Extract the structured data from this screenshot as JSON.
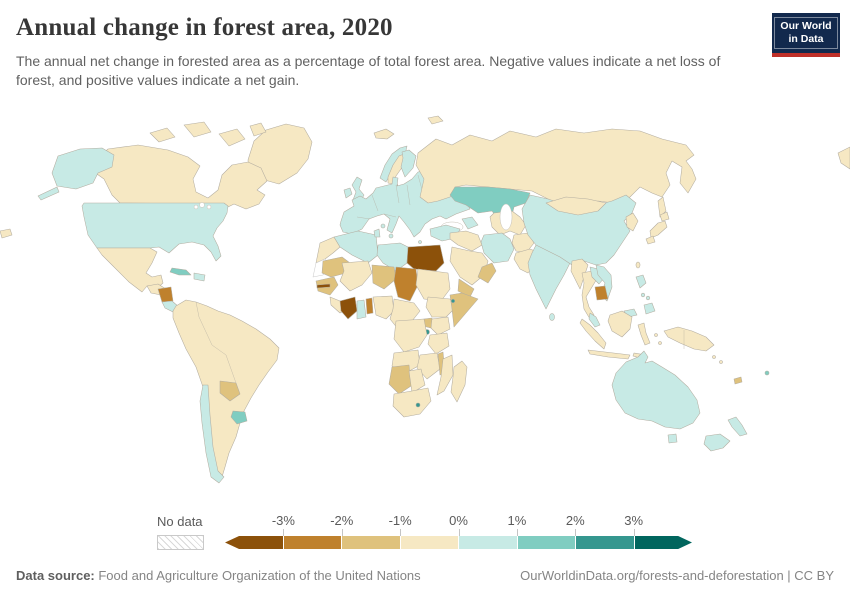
{
  "header": {
    "title": "Annual change in forest area, 2020",
    "subtitle": "The annual net change in forested area as a percentage of total forest area. Negative values indicate a net loss of forest, and positive values indicate a net gain.",
    "logo": {
      "line1": "Our World",
      "line2": "in Data"
    }
  },
  "legend": {
    "no_data_label": "No data",
    "tick_labels": [
      "-3%",
      "-2%",
      "-1%",
      "0%",
      "1%",
      "2%",
      "3%"
    ]
  },
  "footer": {
    "source_label": "Data source:",
    "source_text": " Food and Agriculture Organization of the United Nations",
    "citation": "OurWorldinData.org/forests-and-deforestation | CC BY"
  },
  "colors": {
    "logo_bg": "#12294d",
    "logo_stripe": "#bf3029",
    "border": "#b3ada0"
  },
  "chart_data": {
    "type": "choropleth",
    "title": "Annual change in forest area, 2020",
    "unit": "% of forest area per year",
    "legend_position": "bottom",
    "scale": {
      "domain_ticks": [
        "-3%",
        "-2%",
        "-1%",
        "0%",
        "1%",
        "2%",
        "3%"
      ],
      "bins": [
        {
          "key": "m3",
          "label": "less than -3%",
          "color": "#8c510a"
        },
        {
          "key": "m2",
          "label": "-3% to -2%",
          "color": "#bf812d"
        },
        {
          "key": "m1",
          "label": "-2% to -1%",
          "color": "#dfc27d"
        },
        {
          "key": "m0",
          "label": "-1% to 0%",
          "color": "#f6e8c3"
        },
        {
          "key": "p0",
          "label": "0% to 1%",
          "color": "#c7eae5"
        },
        {
          "key": "p1",
          "label": "1% to 2%",
          "color": "#80cdc1"
        },
        {
          "key": "p2",
          "label": "2% to 3%",
          "color": "#35978f"
        },
        {
          "key": "p3",
          "label": "more than 3%",
          "color": "#01665e"
        },
        {
          "key": "nd",
          "label": "No data",
          "color": "#ffffff"
        }
      ]
    },
    "countries": {
      "greenland": "m0",
      "canada": "m0",
      "united-states": "p0",
      "mexico": "m0",
      "guatemala-honduras": "m0",
      "nicaragua": "m2",
      "costa-rica-panama": "p0",
      "cuba": "p1",
      "hispaniola": "p0",
      "south-america": "m0",
      "chile": "p0",
      "paraguay": "m1",
      "uruguay": "p1",
      "iceland": "m0",
      "ireland": "p0",
      "united-kingdom": "p0",
      "norway": "p0",
      "sweden": "m0",
      "finland": "p0",
      "denmark": "p0",
      "europe-mainland": "p0",
      "svalbard": "m0",
      "russia": "m0",
      "kazakhstan": "p1",
      "kyrgyzstan": "p1",
      "central-asia": "m0",
      "afghanistan": "m0",
      "pakistan": "m0",
      "iran": "p0",
      "turkey": "p0",
      "caucasus": "p0",
      "middle-east": "m0",
      "saudi-arabia": "m0",
      "yemen": "m1",
      "oman": "m1",
      "morocco": "m0",
      "western-sahara": "nd",
      "algeria": "p0",
      "tunisia": "p0",
      "libya": "p0",
      "egypt": "m3",
      "mauritania": "m1",
      "mali": "m0",
      "niger": "m1",
      "chad": "m2",
      "sudan": "m0",
      "senegal": "m1",
      "gambia": "m3",
      "sierra-leone-liberia": "m0",
      "cote-divoire": "m3",
      "ghana": "p0",
      "benin-togo": "m2",
      "nigeria": "m0",
      "cameroon-central-africa": "m0",
      "ethiopia": "m0",
      "somalia": "m1",
      "djibouti": "p2",
      "kenya": "m0",
      "uganda": "m1",
      "rwanda-burundi": "p2",
      "dr-congo": "m0",
      "tanzania": "m0",
      "angola": "m0",
      "zambia-zimbabwe": "m0",
      "malawi": "m1",
      "mozambique": "m0",
      "namibia": "m1",
      "botswana": "m0",
      "south-africa": "m0",
      "lesotho": "p2",
      "madagascar": "m0",
      "india": "p0",
      "sri-lanka": "p0",
      "china": "p0",
      "taiwan": "m0",
      "mongolia": "m0",
      "korea": "m0",
      "japan": "m0",
      "myanmar": "m0",
      "thailand": "m0",
      "laos": "p0",
      "vietnam": "p0",
      "cambodia": "m2",
      "malaysia": "p0",
      "indonesia": "m0",
      "philippines": "p0",
      "papua-new-guinea": "m0",
      "australia": "p0",
      "new-zealand": "p0",
      "new-caledonia": "m1",
      "fiji": "p1",
      "solomon-islands": "m0"
    }
  }
}
